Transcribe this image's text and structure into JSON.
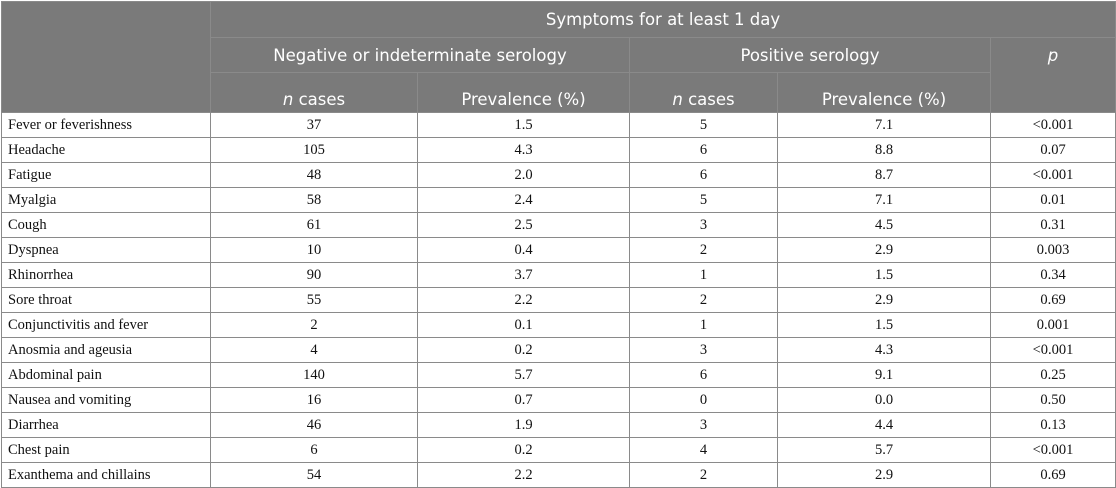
{
  "header": {
    "title": "Symptoms for at least 1 day",
    "group_negative": "Negative or indeterminate serology",
    "group_positive": "Positive serology",
    "p_label": "p",
    "n_symbol": "n",
    "cases_label": " cases",
    "prevalence_label": "Prevalence (%)"
  },
  "rows": [
    {
      "symptom": "Fever or feverishness",
      "neg_n": "37",
      "neg_prev": "1.5",
      "pos_n": "5",
      "pos_prev": "7.1",
      "p": "<0.001"
    },
    {
      "symptom": "Headache",
      "neg_n": "105",
      "neg_prev": "4.3",
      "pos_n": "6",
      "pos_prev": "8.8",
      "p": "0.07"
    },
    {
      "symptom": "Fatigue",
      "neg_n": "48",
      "neg_prev": "2.0",
      "pos_n": "6",
      "pos_prev": "8.7",
      "p": "<0.001"
    },
    {
      "symptom": "Myalgia",
      "neg_n": "58",
      "neg_prev": "2.4",
      "pos_n": "5",
      "pos_prev": "7.1",
      "p": "0.01"
    },
    {
      "symptom": "Cough",
      "neg_n": "61",
      "neg_prev": "2.5",
      "pos_n": "3",
      "pos_prev": "4.5",
      "p": "0.31"
    },
    {
      "symptom": "Dyspnea",
      "neg_n": "10",
      "neg_prev": "0.4",
      "pos_n": "2",
      "pos_prev": "2.9",
      "p": "0.003"
    },
    {
      "symptom": "Rhinorrhea",
      "neg_n": "90",
      "neg_prev": "3.7",
      "pos_n": "1",
      "pos_prev": "1.5",
      "p": "0.34"
    },
    {
      "symptom": "Sore throat",
      "neg_n": "55",
      "neg_prev": "2.2",
      "pos_n": "2",
      "pos_prev": "2.9",
      "p": "0.69"
    },
    {
      "symptom": "Conjunctivitis and fever",
      "neg_n": "2",
      "neg_prev": "0.1",
      "pos_n": "1",
      "pos_prev": "1.5",
      "p": "0.001"
    },
    {
      "symptom": "Anosmia and ageusia",
      "neg_n": "4",
      "neg_prev": "0.2",
      "pos_n": "3",
      "pos_prev": "4.3",
      "p": "<0.001"
    },
    {
      "symptom": "Abdominal pain",
      "neg_n": "140",
      "neg_prev": "5.7",
      "pos_n": "6",
      "pos_prev": "9.1",
      "p": "0.25"
    },
    {
      "symptom": "Nausea and vomiting",
      "neg_n": "16",
      "neg_prev": "0.7",
      "pos_n": "0",
      "pos_prev": "0.0",
      "p": "0.50"
    },
    {
      "symptom": "Diarrhea",
      "neg_n": "46",
      "neg_prev": "1.9",
      "pos_n": "3",
      "pos_prev": "4.4",
      "p": "0.13"
    },
    {
      "symptom": "Chest pain",
      "neg_n": "6",
      "neg_prev": "0.2",
      "pos_n": "4",
      "pos_prev": "5.7",
      "p": "<0.001"
    },
    {
      "symptom": "Exanthema and chillains",
      "neg_n": "54",
      "neg_prev": "2.2",
      "pos_n": "2",
      "pos_prev": "2.9",
      "p": "0.69"
    }
  ]
}
